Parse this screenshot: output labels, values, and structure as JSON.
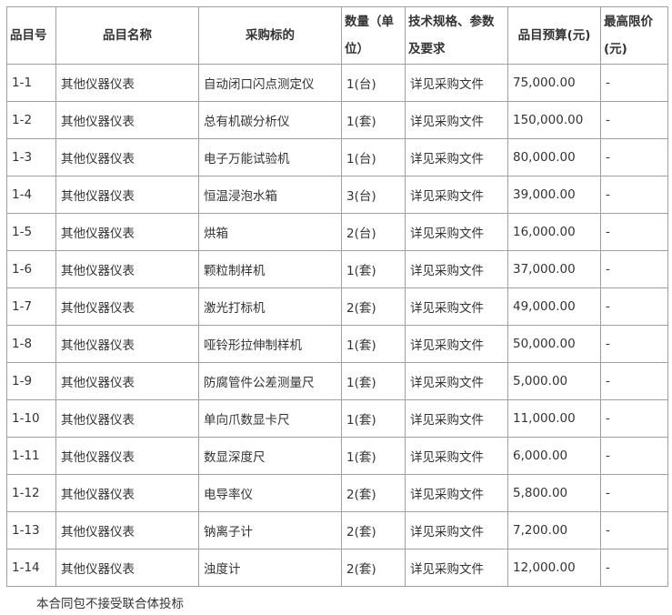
{
  "headers": [
    "品目号",
    "品目名称",
    "采购标的",
    "数量（单位）",
    "技术规格、参数及要求",
    "品目预算(元)",
    "最高限价(元)"
  ],
  "rows": [
    [
      "1-1",
      "其他仪器仪表",
      "自动闭口闪点测定仪",
      "1(台)",
      "详见采购文件",
      "75,000.00",
      "-"
    ],
    [
      "1-2",
      "其他仪器仪表",
      "总有机碳分析仪",
      "1(套)",
      "详见采购文件",
      "150,000.00",
      "-"
    ],
    [
      "1-3",
      "其他仪器仪表",
      "电子万能试验机",
      "1(台)",
      "详见采购文件",
      "80,000.00",
      "-"
    ],
    [
      "1-4",
      "其他仪器仪表",
      "恒温浸泡水箱",
      "3(台)",
      "详见采购文件",
      "39,000.00",
      "-"
    ],
    [
      "1-5",
      "其他仪器仪表",
      "烘箱",
      "2(台)",
      "详见采购文件",
      "16,000.00",
      "-"
    ],
    [
      "1-6",
      "其他仪器仪表",
      "颗粒制样机",
      "1(套)",
      "详见采购文件",
      "37,000.00",
      "-"
    ],
    [
      "1-7",
      "其他仪器仪表",
      "激光打标机",
      "2(套)",
      "详见采购文件",
      "49,000.00",
      "-"
    ],
    [
      "1-8",
      "其他仪器仪表",
      "哑铃形拉伸制样机",
      "1(套)",
      "详见采购文件",
      "50,000.00",
      "-"
    ],
    [
      "1-9",
      "其他仪器仪表",
      "防腐管件公差测量尺",
      "1(套)",
      "详见采购文件",
      "5,000.00",
      "-"
    ],
    [
      "1-10",
      "其他仪器仪表",
      "单向爪数显卡尺",
      "1(套)",
      "详见采购文件",
      "11,000.00",
      "-"
    ],
    [
      "1-11",
      "其他仪器仪表",
      "数显深度尺",
      "1(套)",
      "详见采购文件",
      "6,000.00",
      "-"
    ],
    [
      "1-12",
      "其他仪器仪表",
      "电导率仪",
      "2(套)",
      "详见采购文件",
      "5,800.00",
      "-"
    ],
    [
      "1-13",
      "其他仪器仪表",
      "钠离子计",
      "2(套)",
      "详见采购文件",
      "7,200.00",
      "-"
    ],
    [
      "1-14",
      "其他仪器仪表",
      "浊度计",
      "2(套)",
      "详见采购文件",
      "12,000.00",
      "-"
    ]
  ],
  "note": "本合同包不接受联合体投标"
}
